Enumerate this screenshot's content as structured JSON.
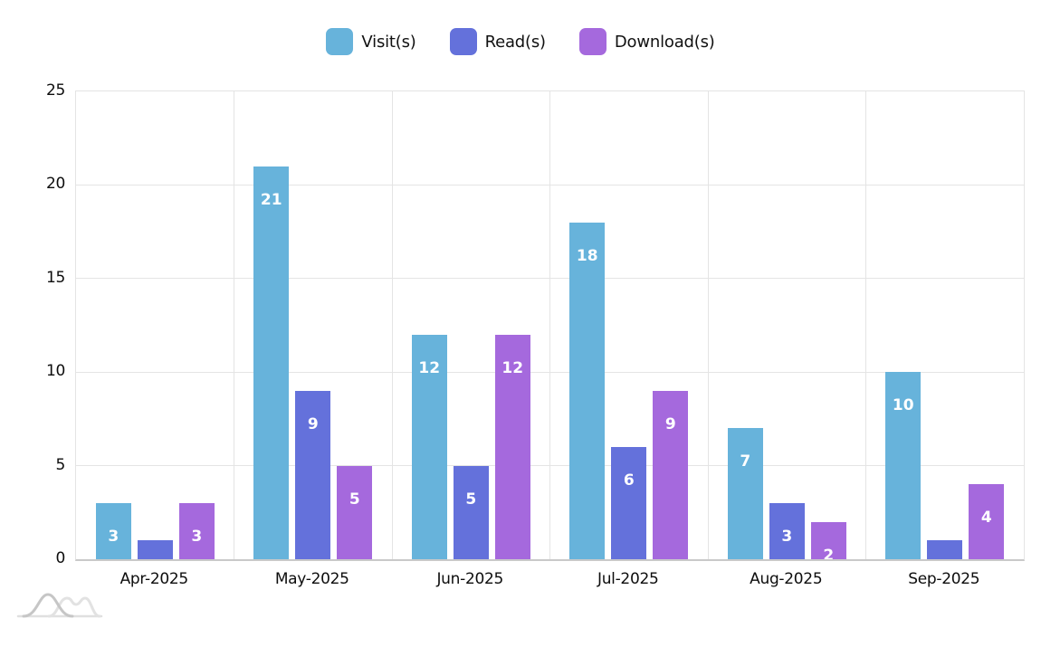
{
  "chart_data": {
    "type": "bar",
    "title": "",
    "xlabel": "",
    "ylabel": "",
    "categories": [
      "Apr-2025",
      "May-2025",
      "Jun-2025",
      "Jul-2025",
      "Aug-2025",
      "Sep-2025"
    ],
    "series": [
      {
        "name": "Visit(s)",
        "color": "#67b3db",
        "values": [
          3,
          21,
          12,
          18,
          7,
          10
        ]
      },
      {
        "name": "Read(s)",
        "color": "#6471db",
        "values": [
          1,
          9,
          5,
          6,
          3,
          1
        ]
      },
      {
        "name": "Download(s)",
        "color": "#a569dd",
        "values": [
          3,
          5,
          12,
          9,
          2,
          4
        ]
      }
    ],
    "ylim": [
      0,
      25
    ],
    "yticks": [
      0,
      5,
      10,
      15,
      20,
      25
    ],
    "grid": true,
    "legend_position": "top",
    "bar_value_labels_color": "#ffffff"
  },
  "style_colors": {
    "gridline": "#e4e4e4",
    "axis_line": "#c9c9c9",
    "tick_text": "#0d0d0d",
    "watermark_gray_dark": "#c6c6c6",
    "watermark_gray_light": "#e2e2e2"
  },
  "watermark": {
    "icon_name": "overlapping-bell-curves-logo"
  }
}
